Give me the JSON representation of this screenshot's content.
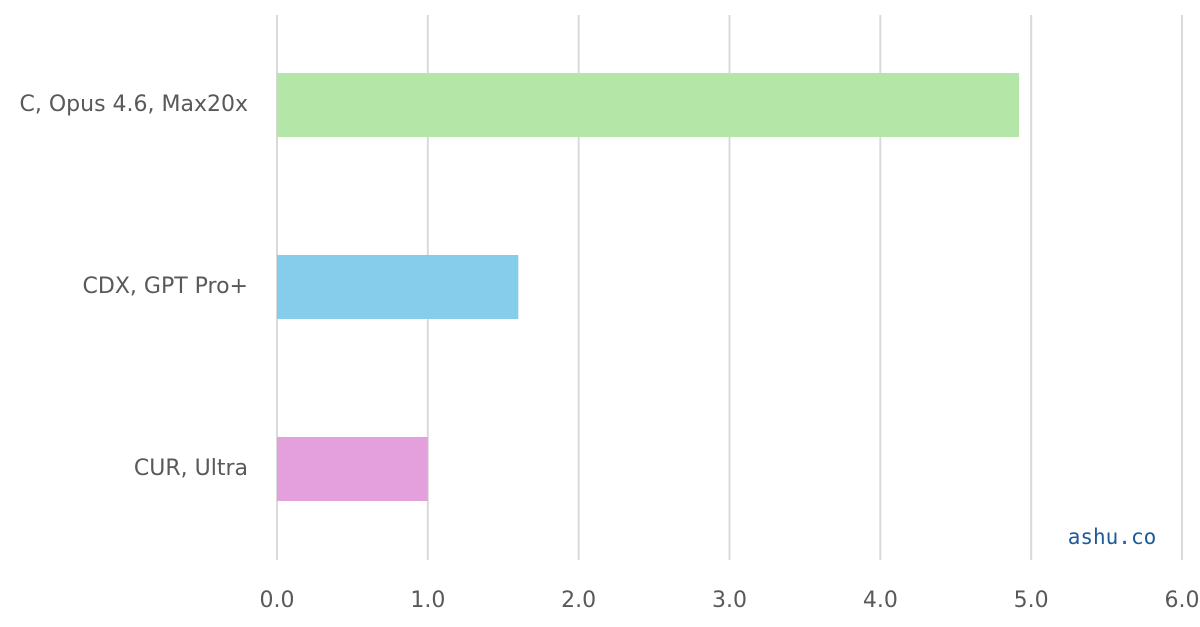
{
  "chart_data": {
    "type": "hbar",
    "categories": [
      "C, Opus 4.6, Max20x",
      "CDX, GPT Pro+",
      "CUR, Ultra"
    ],
    "values": [
      4.92,
      1.6,
      1.0
    ],
    "colors": [
      "#b4e6a7",
      "#86cceb",
      "#e3a0dc"
    ],
    "xlim": [
      0,
      6
    ],
    "xticks": [
      {
        "value": 0,
        "label": "0.0"
      },
      {
        "value": 1,
        "label": "1.0"
      },
      {
        "value": 2,
        "label": "2.0"
      },
      {
        "value": 3,
        "label": "3.0"
      },
      {
        "value": 4,
        "label": "4.0"
      },
      {
        "value": 5,
        "label": "5.0"
      },
      {
        "value": 6,
        "label": "6.0"
      }
    ],
    "grid": true,
    "annotation": "ashu.co"
  }
}
